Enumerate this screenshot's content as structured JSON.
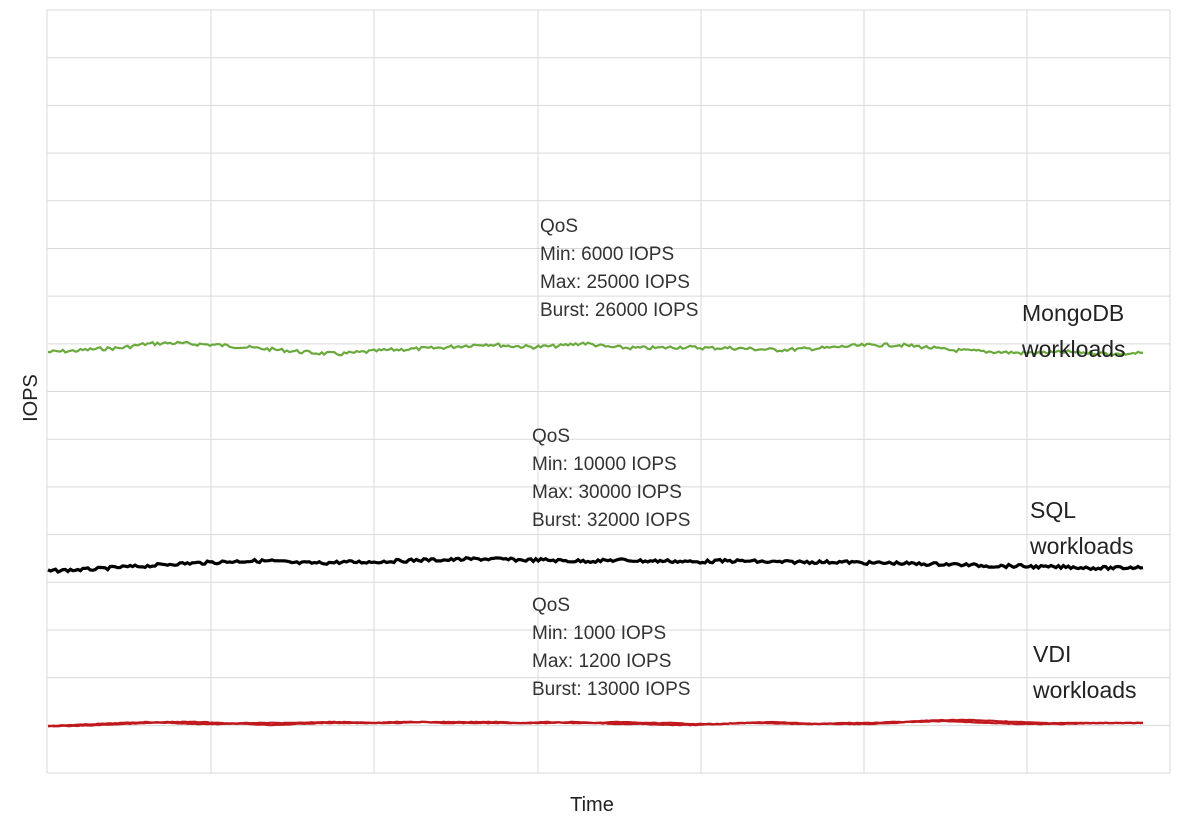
{
  "chart_data": {
    "type": "line",
    "title": "",
    "xlabel": "Time",
    "ylabel": "IOPS",
    "grid": true,
    "ticks_shown": false,
    "series": [
      {
        "key": "mongodb",
        "name": [
          "MongoDB",
          "workloads"
        ],
        "color": "#6aaa3c",
        "style": "single",
        "qos": [
          "QoS",
          "Min: 6000 IOPS",
          "Max: 25000 IOPS",
          "Burst: 26000 IOPS"
        ],
        "values": [
          0.16,
          0.17,
          0.19,
          0.2,
          0.24,
          0.25,
          0.24,
          0.23,
          0.21,
          0.19,
          0.17,
          0.15,
          0.14,
          0.16,
          0.18,
          0.19,
          0.2,
          0.22,
          0.24,
          0.22,
          0.21,
          0.22,
          0.25,
          0.21,
          0.2,
          0.2,
          0.21,
          0.2,
          0.2,
          0.19,
          0.18,
          0.19,
          0.2,
          0.22,
          0.23,
          0.23,
          0.21,
          0.18,
          0.17,
          0.16,
          0.15,
          0.15,
          0.16,
          0.15,
          0.14,
          0.15
        ]
      },
      {
        "key": "sql",
        "name": [
          "SQL",
          "workloads"
        ],
        "color": "#000000",
        "style": "single",
        "qos": [
          "QoS",
          "Min: 10000 IOPS",
          "Max: 30000 IOPS",
          "Burst: 32000 IOPS"
        ],
        "values": [
          -0.06,
          -0.05,
          -0.04,
          -0.02,
          -0.01,
          0.01,
          0.02,
          0.03,
          0.04,
          0.04,
          0.02,
          0.02,
          0.03,
          0.03,
          0.04,
          0.05,
          0.05,
          0.06,
          0.06,
          0.05,
          0.05,
          0.04,
          0.04,
          0.05,
          0.04,
          0.04,
          0.03,
          0.04,
          0.04,
          0.03,
          0.03,
          0.03,
          0.03,
          0.02,
          0.02,
          0.01,
          0.01,
          0.0,
          -0.01,
          -0.01,
          -0.02,
          -0.02,
          -0.03,
          -0.03,
          -0.02
        ]
      },
      {
        "key": "vdi",
        "name": [
          "VDI",
          "workloads"
        ],
        "color": "#c0181c",
        "style": "double",
        "qos": [
          "QoS",
          "Min: 1000 IOPS",
          "Max: 1200 IOPS",
          "Burst: 13000 IOPS"
        ],
        "values_a": [
          -0.03,
          -0.02,
          -0.01,
          0.0,
          0.01,
          0.0,
          -0.01,
          -0.01,
          0.0,
          0.0,
          0.0,
          0.01,
          0.01,
          0.0,
          0.0,
          0.01,
          0.01,
          0.01,
          0.01,
          0.0,
          0.01,
          0.0,
          0.0,
          0.01,
          0.0,
          0.0,
          -0.01,
          -0.01,
          0.0,
          0.01,
          0.0,
          -0.01,
          -0.01,
          -0.01,
          0.0,
          0.02,
          0.03,
          0.03,
          0.02,
          0.01,
          0.0,
          0.0,
          0.0,
          0.0,
          0.0
        ],
        "values_b": [
          -0.03,
          -0.03,
          -0.02,
          -0.01,
          0.0,
          0.01,
          0.01,
          0.0,
          -0.01,
          -0.02,
          -0.01,
          0.0,
          0.0,
          0.0,
          0.01,
          0.01,
          0.0,
          0.0,
          0.0,
          0.0,
          0.0,
          0.01,
          0.0,
          -0.01,
          -0.01,
          -0.02,
          -0.02,
          -0.01,
          0.0,
          0.0,
          -0.01,
          -0.01,
          0.0,
          0.0,
          0.01,
          0.01,
          0.02,
          0.01,
          0.0,
          -0.01,
          -0.01,
          -0.01,
          0.0,
          0.0,
          0.0
        ]
      }
    ]
  }
}
